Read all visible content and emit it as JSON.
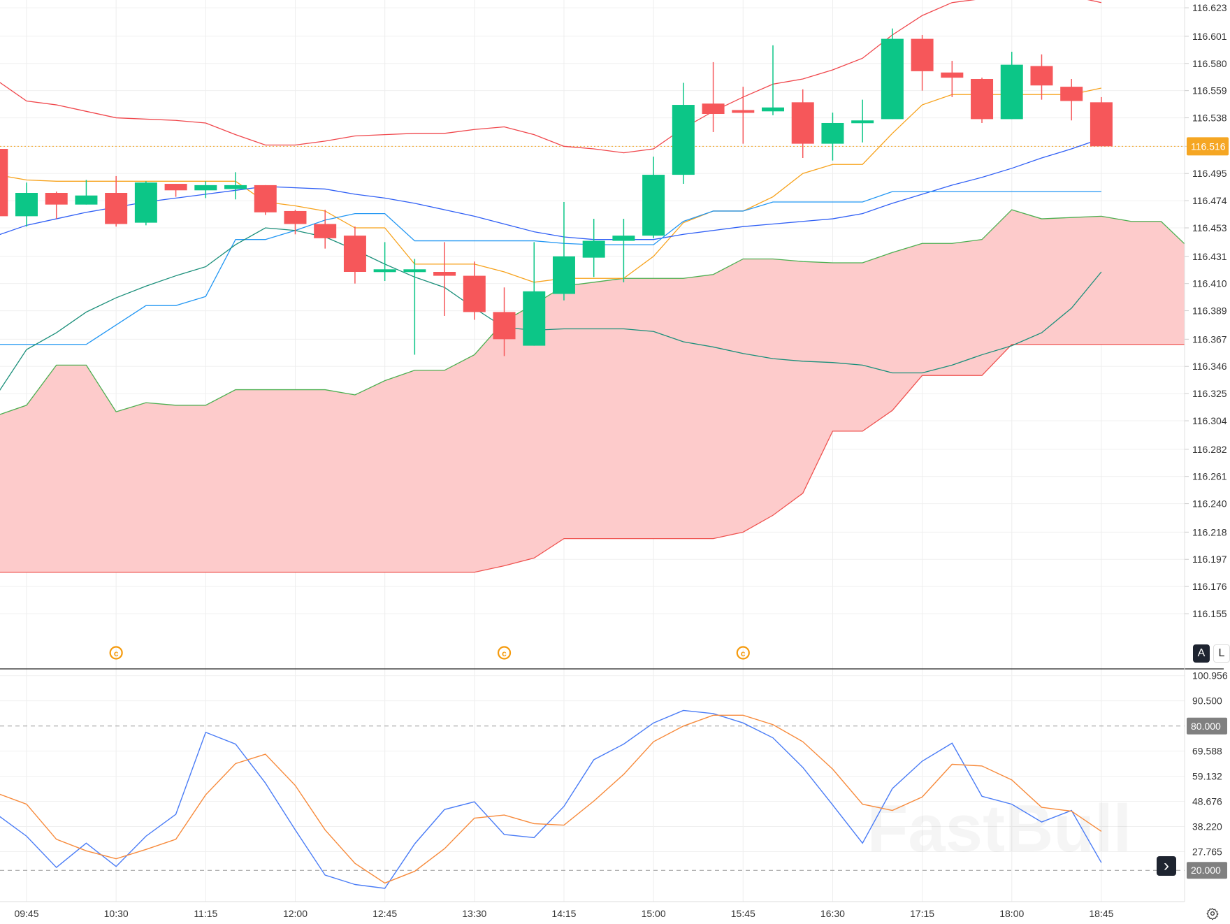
{
  "chart_data": [
    {
      "type": "candlestick",
      "title": "",
      "price_axis_labels": [
        "116.623",
        "116.601",
        "116.580",
        "116.559",
        "116.538",
        "116.516",
        "116.495",
        "116.474",
        "116.453",
        "116.431",
        "116.410",
        "116.389",
        "116.367",
        "116.346",
        "116.325",
        "116.304",
        "116.282",
        "116.261",
        "116.240",
        "116.218",
        "116.197",
        "116.176",
        "116.155"
      ],
      "time_axis_labels": [
        "09:45",
        "10:30",
        "11:15",
        "12:00",
        "12:45",
        "13:30",
        "14:15",
        "15:00",
        "15:45",
        "16:30",
        "17:15",
        "18:00",
        "18:45"
      ],
      "current_price": "116.516",
      "candle_fields": [
        "time",
        "open",
        "high",
        "low",
        "close"
      ],
      "candles": [
        [
          "09:30",
          116.514,
          116.514,
          116.46,
          116.462
        ],
        [
          "09:45",
          116.462,
          116.488,
          116.454,
          116.48
        ],
        [
          "10:00",
          116.48,
          116.481,
          116.46,
          116.471
        ],
        [
          "10:15",
          116.471,
          116.49,
          116.471,
          116.478
        ],
        [
          "10:30",
          116.48,
          116.493,
          116.454,
          116.456
        ],
        [
          "10:45",
          116.457,
          116.489,
          116.455,
          116.488
        ],
        [
          "11:00",
          116.487,
          116.487,
          116.477,
          116.482
        ],
        [
          "11:15",
          116.482,
          116.489,
          116.476,
          116.486
        ],
        [
          "11:30",
          116.483,
          116.496,
          116.475,
          116.486
        ],
        [
          "11:45",
          116.486,
          116.486,
          116.463,
          116.465
        ],
        [
          "12:00",
          116.466,
          116.467,
          116.448,
          116.456
        ],
        [
          "12:15",
          116.456,
          116.467,
          116.437,
          116.445
        ],
        [
          "12:30",
          116.447,
          116.454,
          116.41,
          116.419
        ],
        [
          "12:45",
          116.419,
          116.442,
          116.412,
          116.421
        ],
        [
          "13:00",
          116.419,
          116.429,
          116.355,
          116.421
        ],
        [
          "13:15",
          116.419,
          116.442,
          116.385,
          116.416
        ],
        [
          "13:30",
          116.416,
          116.427,
          116.382,
          116.388
        ],
        [
          "13:45",
          116.388,
          116.407,
          116.354,
          116.367
        ],
        [
          "14:00",
          116.362,
          116.442,
          116.362,
          116.404
        ],
        [
          "14:15",
          116.402,
          116.473,
          116.397,
          116.431
        ],
        [
          "14:30",
          116.43,
          116.46,
          116.415,
          116.443
        ],
        [
          "14:45",
          116.443,
          116.46,
          116.411,
          116.447
        ],
        [
          "15:00",
          116.447,
          116.508,
          116.445,
          116.494
        ],
        [
          "15:15",
          116.494,
          116.565,
          116.487,
          116.548
        ],
        [
          "15:30",
          116.549,
          116.581,
          116.527,
          116.541
        ],
        [
          "15:45",
          116.544,
          116.562,
          116.518,
          116.543
        ],
        [
          "16:00",
          116.543,
          116.594,
          116.54,
          116.546
        ],
        [
          "16:15",
          116.55,
          116.56,
          116.507,
          116.518
        ],
        [
          "16:30",
          116.518,
          116.542,
          116.505,
          116.534
        ],
        [
          "16:45",
          116.536,
          116.552,
          116.519,
          116.536
        ],
        [
          "17:00",
          116.537,
          116.607,
          116.537,
          116.599
        ],
        [
          "17:15",
          116.599,
          116.602,
          116.559,
          116.574
        ],
        [
          "17:30",
          116.573,
          116.582,
          116.554,
          116.569
        ],
        [
          "17:45",
          116.568,
          116.569,
          116.534,
          116.537
        ],
        [
          "18:00",
          116.537,
          116.589,
          116.537,
          116.579
        ],
        [
          "18:15",
          116.578,
          116.587,
          116.552,
          116.563
        ],
        [
          "18:30",
          116.562,
          116.568,
          116.536,
          116.551
        ],
        [
          "18:45",
          116.55,
          116.554,
          116.516,
          116.516
        ]
      ],
      "overlays": [
        {
          "color": "#f0464b",
          "values": [
            116.567,
            116.551,
            116.548,
            116.543,
            116.538,
            116.537,
            116.536,
            116.534,
            116.525,
            116.517,
            116.517,
            116.52,
            116.524,
            116.525,
            116.526,
            116.526,
            116.529,
            116.531,
            116.525,
            116.516,
            116.514,
            116.511,
            116.514,
            116.53,
            116.543,
            116.554,
            116.564,
            116.568,
            116.575,
            116.584,
            116.602,
            116.617,
            116.627,
            116.63,
            116.632,
            116.633,
            116.632,
            116.627
          ]
        },
        {
          "color": "#f7a21b",
          "values": [
            116.494,
            116.49,
            116.489,
            116.489,
            116.489,
            116.489,
            116.489,
            116.489,
            116.489,
            116.473,
            116.47,
            116.466,
            116.453,
            116.453,
            116.425,
            116.425,
            116.425,
            116.419,
            116.411,
            116.414,
            116.414,
            116.414,
            116.431,
            116.457,
            116.466,
            116.466,
            116.477,
            116.495,
            116.502,
            116.502,
            116.526,
            116.548,
            116.556,
            116.556,
            116.556,
            116.556,
            116.556,
            116.561
          ]
        },
        {
          "color": "#2f5ff5",
          "values": [
            116.447,
            116.455,
            116.46,
            116.465,
            116.469,
            116.473,
            116.476,
            116.479,
            116.482,
            116.485,
            116.484,
            116.483,
            116.479,
            116.476,
            116.472,
            116.467,
            116.462,
            116.456,
            116.45,
            116.446,
            116.444,
            116.444,
            116.444,
            116.448,
            116.451,
            116.454,
            116.456,
            116.458,
            116.46,
            116.464,
            116.472,
            116.479,
            116.486,
            116.492,
            116.499,
            116.507,
            116.514,
            116.522
          ]
        },
        {
          "color": "#2196f3",
          "values": [
            116.363,
            116.363,
            116.363,
            116.363,
            116.378,
            116.393,
            116.393,
            116.4,
            116.444,
            116.444,
            116.451,
            116.459,
            116.464,
            116.464,
            116.443,
            116.443,
            116.443,
            116.443,
            116.443,
            116.441,
            116.44,
            116.44,
            116.44,
            116.458,
            116.466,
            116.466,
            116.473,
            116.473,
            116.473,
            116.473,
            116.481,
            116.481,
            116.481,
            116.481,
            116.481,
            116.481,
            116.481,
            116.481
          ]
        },
        {
          "color": "#1a8f7a",
          "values": [
            116.324,
            116.359,
            116.372,
            116.388,
            116.399,
            116.408,
            116.416,
            116.423,
            116.44,
            116.453,
            116.451,
            116.446,
            116.436,
            116.425,
            116.415,
            116.407,
            116.391,
            116.376,
            116.374,
            116.375,
            116.375,
            116.375,
            116.373,
            116.365,
            116.361,
            116.356,
            116.352,
            116.35,
            116.349,
            116.347,
            116.341,
            116.341,
            116.347,
            116.355,
            116.362,
            116.372,
            116.391,
            116.419
          ]
        }
      ],
      "cloud": {
        "fill": "#fdc8c8",
        "span_a_color": "#4caf50",
        "span_b_color": "#ef5350",
        "span_a": [
          116.308,
          116.316,
          116.347,
          116.347,
          116.311,
          116.318,
          116.316,
          116.316,
          116.328,
          116.328,
          116.328,
          116.328,
          116.324,
          116.335,
          116.343,
          116.343,
          116.355,
          116.381,
          116.394,
          116.408,
          116.411,
          116.414,
          116.414,
          116.414,
          116.417,
          116.429,
          116.429,
          116.427,
          116.426,
          116.426,
          116.434,
          116.441,
          116.441,
          116.444,
          116.467,
          116.46,
          116.461,
          116.462,
          116.458,
          116.458,
          116.436
        ],
        "span_b": [
          116.187,
          116.187,
          116.187,
          116.187,
          116.187,
          116.187,
          116.187,
          116.187,
          116.187,
          116.187,
          116.187,
          116.187,
          116.187,
          116.187,
          116.187,
          116.187,
          116.187,
          116.192,
          116.198,
          116.213,
          116.213,
          116.213,
          116.213,
          116.213,
          116.213,
          116.218,
          116.231,
          116.248,
          116.296,
          116.296,
          116.312,
          116.339,
          116.339,
          116.339,
          116.363,
          116.363,
          116.363,
          116.363,
          116.363,
          116.363,
          116.363
        ]
      },
      "colors": {
        "up": "#0cc687",
        "down": "#f6575a"
      }
    },
    {
      "type": "line",
      "title": "",
      "axis_labels": [
        "100.956",
        "90.500",
        "69.588",
        "59.132",
        "48.676",
        "38.220",
        "27.765"
      ],
      "levels": [
        "80.000",
        "20.000"
      ],
      "series": [
        {
          "color": "#4a7cf6",
          "values": [
            43.3,
            34.2,
            21.2,
            31.3,
            21.6,
            34.2,
            43.3,
            77.4,
            72.5,
            56.3,
            36.8,
            18.0,
            14.1,
            12.5,
            31.0,
            45.3,
            48.5,
            34.9,
            33.6,
            46.6,
            66.0,
            72.5,
            81.3,
            86.5,
            85.2,
            81.3,
            75.1,
            62.8,
            47.2,
            31.3,
            54.0,
            65.4,
            72.9,
            50.8,
            47.5,
            40.1,
            44.9,
            23.2
          ]
        },
        {
          "color": "#f78a3b",
          "values": [
            52.1,
            47.5,
            32.9,
            28.1,
            24.8,
            28.7,
            32.9,
            51.4,
            64.4,
            68.3,
            55.3,
            36.8,
            22.9,
            14.7,
            19.6,
            29.0,
            41.7,
            43.0,
            39.4,
            38.8,
            48.8,
            59.9,
            73.5,
            80.0,
            84.5,
            84.5,
            80.6,
            73.5,
            62.1,
            47.5,
            44.9,
            50.5,
            64.1,
            63.4,
            57.6,
            46.2,
            44.6,
            36.2
          ]
        }
      ]
    }
  ],
  "markers": {
    "symbol": "©",
    "color": "#f59a0c",
    "times": [
      "10:30",
      "13:45",
      "15:45"
    ]
  },
  "controls": {
    "auto_scale": "A",
    "log_scale": "L",
    "scroll_right": "›",
    "settings_icon": "gear-icon"
  },
  "watermark": "FastBull",
  "colors": {
    "accent": "#f5a623",
    "level_badge": "#808080"
  }
}
